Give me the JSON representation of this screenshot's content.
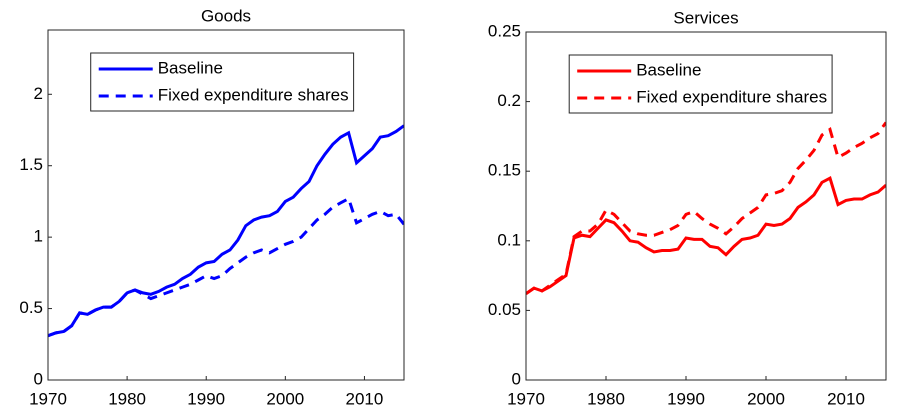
{
  "chart_data": [
    {
      "type": "line",
      "title": "Goods",
      "x": [
        1970,
        1971,
        1972,
        1973,
        1974,
        1975,
        1976,
        1977,
        1978,
        1979,
        1980,
        1981,
        1982,
        1983,
        1984,
        1985,
        1986,
        1987,
        1988,
        1989,
        1990,
        1991,
        1992,
        1993,
        1994,
        1995,
        1996,
        1997,
        1998,
        1999,
        2000,
        2001,
        2002,
        2003,
        2004,
        2005,
        2006,
        2007,
        2008,
        2009,
        2010,
        2011,
        2012,
        2013,
        2014,
        2015
      ],
      "series": [
        {
          "name": "Baseline",
          "color": "#0000ff",
          "style": "solid",
          "values": [
            0.31,
            0.33,
            0.34,
            0.38,
            0.47,
            0.46,
            0.49,
            0.51,
            0.51,
            0.55,
            0.61,
            0.63,
            0.61,
            0.6,
            0.62,
            0.65,
            0.67,
            0.71,
            0.74,
            0.79,
            0.82,
            0.83,
            0.88,
            0.91,
            0.98,
            1.08,
            1.12,
            1.14,
            1.15,
            1.18,
            1.25,
            1.28,
            1.34,
            1.39,
            1.5,
            1.58,
            1.65,
            1.7,
            1.73,
            1.52,
            1.57,
            1.62,
            1.7,
            1.71,
            1.74,
            1.78
          ]
        },
        {
          "name": "Fixed expenditure shares",
          "color": "#0000ff",
          "style": "dashed",
          "values": [
            0.31,
            0.33,
            0.34,
            0.38,
            0.47,
            0.46,
            0.49,
            0.51,
            0.51,
            0.55,
            0.61,
            0.63,
            0.6,
            0.57,
            0.59,
            0.61,
            0.63,
            0.65,
            0.67,
            0.7,
            0.73,
            0.71,
            0.73,
            0.78,
            0.82,
            0.86,
            0.89,
            0.91,
            0.89,
            0.92,
            0.95,
            0.97,
            1.0,
            1.06,
            1.12,
            1.16,
            1.21,
            1.24,
            1.27,
            1.1,
            1.13,
            1.16,
            1.18,
            1.15,
            1.16,
            1.09
          ]
        }
      ],
      "xlim": [
        1970,
        2015
      ],
      "xticks": [
        1970,
        1980,
        1990,
        2000,
        2010
      ],
      "ylim": [
        0,
        2.45
      ],
      "yticks": [
        0,
        0.5,
        1,
        1.5,
        2
      ],
      "legend": "top"
    },
    {
      "type": "line",
      "title": "Services",
      "x": [
        1970,
        1971,
        1972,
        1973,
        1974,
        1975,
        1976,
        1977,
        1978,
        1979,
        1980,
        1981,
        1982,
        1983,
        1984,
        1985,
        1986,
        1987,
        1988,
        1989,
        1990,
        1991,
        1992,
        1993,
        1994,
        1995,
        1996,
        1997,
        1998,
        1999,
        2000,
        2001,
        2002,
        2003,
        2004,
        2005,
        2006,
        2007,
        2008,
        2009,
        2010,
        2011,
        2012,
        2013,
        2014,
        2015
      ],
      "series": [
        {
          "name": "Baseline",
          "color": "#ff0000",
          "style": "solid",
          "values": [
            0.062,
            0.066,
            0.064,
            0.067,
            0.071,
            0.075,
            0.102,
            0.104,
            0.103,
            0.109,
            0.115,
            0.113,
            0.107,
            0.1,
            0.099,
            0.095,
            0.092,
            0.093,
            0.093,
            0.094,
            0.102,
            0.101,
            0.101,
            0.096,
            0.095,
            0.09,
            0.096,
            0.101,
            0.102,
            0.104,
            0.112,
            0.111,
            0.112,
            0.116,
            0.124,
            0.128,
            0.133,
            0.142,
            0.145,
            0.126,
            0.129,
            0.13,
            0.13,
            0.133,
            0.135,
            0.14
          ]
        },
        {
          "name": "Fixed expenditure shares",
          "color": "#ff0000",
          "style": "dashed",
          "values": [
            0.062,
            0.066,
            0.064,
            0.068,
            0.072,
            0.076,
            0.103,
            0.107,
            0.107,
            0.112,
            0.122,
            0.119,
            0.113,
            0.107,
            0.105,
            0.104,
            0.104,
            0.106,
            0.108,
            0.111,
            0.119,
            0.121,
            0.116,
            0.112,
            0.109,
            0.105,
            0.11,
            0.116,
            0.12,
            0.124,
            0.133,
            0.134,
            0.136,
            0.142,
            0.152,
            0.158,
            0.165,
            0.176,
            0.18,
            0.16,
            0.163,
            0.167,
            0.17,
            0.174,
            0.177,
            0.185
          ]
        }
      ],
      "xlim": [
        1970,
        2015
      ],
      "xticks": [
        1970,
        1980,
        1990,
        2000,
        2010
      ],
      "ylim": [
        0,
        0.25
      ],
      "yticks": [
        0,
        0.05,
        0.1,
        0.15,
        0.2,
        0.25
      ],
      "legend": "top"
    }
  ]
}
